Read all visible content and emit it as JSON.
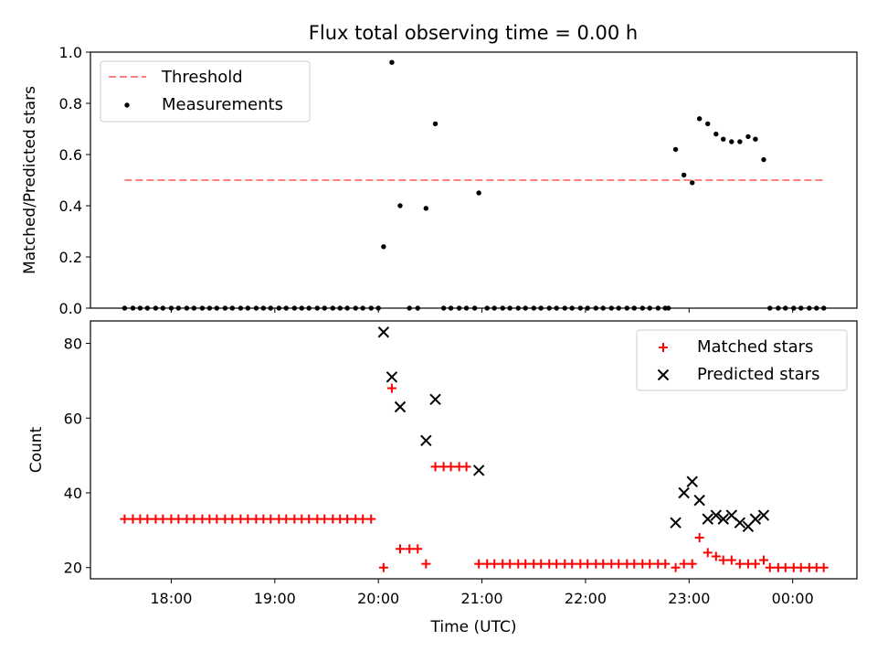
{
  "title": "Flux total observing time = 0.00 h",
  "chart_data": [
    {
      "type": "scatter",
      "ylabel": "Matched/Predicted stars",
      "ylim": [
        0,
        1.0
      ],
      "yticks": [
        "0.0",
        "0.2",
        "0.4",
        "0.6",
        "0.8",
        "1.0"
      ],
      "threshold": {
        "name": "Threshold",
        "value": 0.5,
        "x_start": 17.55,
        "x_end": 24.3,
        "color": "#ff7f7f"
      },
      "legend": {
        "position": "top-left",
        "entries": [
          "Threshold",
          "Measurements"
        ]
      },
      "series": [
        {
          "name": "Measurements",
          "color": "#000000",
          "x": [
            17.55,
            17.63,
            17.7,
            17.77,
            17.85,
            17.92,
            18.0,
            18.07,
            18.15,
            18.22,
            18.3,
            18.37,
            18.44,
            18.52,
            18.59,
            18.67,
            18.74,
            18.82,
            18.89,
            18.96,
            19.04,
            19.11,
            19.19,
            19.26,
            19.33,
            19.41,
            19.48,
            19.56,
            19.63,
            19.7,
            19.78,
            19.85,
            19.93,
            20.0,
            20.05,
            20.13,
            20.21,
            20.3,
            20.38,
            20.46,
            20.55,
            20.63,
            20.7,
            20.78,
            20.85,
            20.93,
            20.97,
            21.05,
            21.12,
            21.2,
            21.27,
            21.35,
            21.42,
            21.5,
            21.57,
            21.65,
            21.72,
            21.8,
            21.87,
            21.95,
            22.02,
            22.1,
            22.17,
            22.25,
            22.32,
            22.4,
            22.47,
            22.55,
            22.62,
            22.7,
            22.77,
            22.8,
            22.87,
            22.95,
            23.03,
            23.1,
            23.18,
            23.26,
            23.33,
            23.41,
            23.49,
            23.57,
            23.64,
            23.72,
            23.78,
            23.86,
            23.93,
            24.01,
            24.08,
            24.16,
            24.23,
            24.3
          ],
          "y": [
            0,
            0,
            0,
            0,
            0,
            0,
            0,
            0,
            0,
            0,
            0,
            0,
            0,
            0,
            0,
            0,
            0,
            0,
            0,
            0,
            0,
            0,
            0,
            0,
            0,
            0,
            0,
            0,
            0,
            0,
            0,
            0,
            0,
            0,
            0.24,
            0.96,
            0.4,
            0,
            0,
            0.39,
            0.72,
            0,
            0,
            0,
            0,
            0,
            0.45,
            0,
            0,
            0,
            0,
            0,
            0,
            0,
            0,
            0,
            0,
            0,
            0,
            0,
            0,
            0,
            0,
            0,
            0,
            0,
            0,
            0,
            0,
            0,
            0,
            0,
            0.62,
            0.52,
            0.49,
            0.74,
            0.72,
            0.68,
            0.66,
            0.65,
            0.65,
            0.67,
            0.66,
            0.58,
            0,
            0,
            0,
            0,
            0,
            0,
            0,
            0
          ]
        }
      ]
    },
    {
      "type": "scatter",
      "xlabel": "Time (UTC)",
      "ylabel": "Count",
      "ylim": [
        17,
        86
      ],
      "xlim": [
        17.22,
        24.62
      ],
      "yticks": [
        "20",
        "40",
        "60",
        "80"
      ],
      "xticks": [
        "18:00",
        "19:00",
        "20:00",
        "21:00",
        "22:00",
        "23:00",
        "00:00"
      ],
      "legend": {
        "position": "top-right",
        "entries": [
          "Matched stars",
          "Predicted stars"
        ]
      },
      "series": [
        {
          "name": "Matched stars",
          "marker": "+",
          "color": "#ff0000",
          "x": [
            17.55,
            17.63,
            17.7,
            17.77,
            17.85,
            17.92,
            18.0,
            18.07,
            18.15,
            18.22,
            18.3,
            18.37,
            18.44,
            18.52,
            18.59,
            18.67,
            18.74,
            18.82,
            18.89,
            18.96,
            19.04,
            19.11,
            19.19,
            19.26,
            19.33,
            19.41,
            19.48,
            19.56,
            19.63,
            19.7,
            19.78,
            19.85,
            19.93,
            20.05,
            20.13,
            20.21,
            20.3,
            20.38,
            20.46,
            20.55,
            20.63,
            20.7,
            20.78,
            20.85,
            20.97,
            21.05,
            21.12,
            21.2,
            21.27,
            21.35,
            21.42,
            21.5,
            21.57,
            21.65,
            21.72,
            21.8,
            21.87,
            21.95,
            22.02,
            22.1,
            22.17,
            22.25,
            22.32,
            22.4,
            22.47,
            22.55,
            22.62,
            22.7,
            22.77,
            22.87,
            22.95,
            23.03,
            23.1,
            23.18,
            23.26,
            23.33,
            23.41,
            23.49,
            23.57,
            23.64,
            23.72,
            23.78,
            23.86,
            23.93,
            24.01,
            24.08,
            24.16,
            24.23,
            24.3
          ],
          "y": [
            33,
            33,
            33,
            33,
            33,
            33,
            33,
            33,
            33,
            33,
            33,
            33,
            33,
            33,
            33,
            33,
            33,
            33,
            33,
            33,
            33,
            33,
            33,
            33,
            33,
            33,
            33,
            33,
            33,
            33,
            33,
            33,
            33,
            20,
            68,
            25,
            25,
            25,
            21,
            47,
            47,
            47,
            47,
            47,
            21,
            21,
            21,
            21,
            21,
            21,
            21,
            21,
            21,
            21,
            21,
            21,
            21,
            21,
            21,
            21,
            21,
            21,
            21,
            21,
            21,
            21,
            21,
            21,
            21,
            20,
            21,
            21,
            28,
            24,
            23,
            22,
            22,
            21,
            21,
            21,
            22,
            20,
            20,
            20,
            20,
            20,
            20,
            20,
            20
          ]
        },
        {
          "name": "Predicted stars",
          "marker": "x",
          "color": "#000000",
          "x": [
            20.05,
            20.13,
            20.21,
            20.46,
            20.55,
            20.97,
            22.87,
            22.95,
            23.03,
            23.1,
            23.18,
            23.26,
            23.33,
            23.41,
            23.49,
            23.57,
            23.64,
            23.72
          ],
          "y": [
            83,
            71,
            63,
            54,
            65,
            46,
            32,
            40,
            43,
            38,
            33,
            34,
            33,
            34,
            32,
            31,
            33,
            34
          ]
        }
      ]
    }
  ]
}
